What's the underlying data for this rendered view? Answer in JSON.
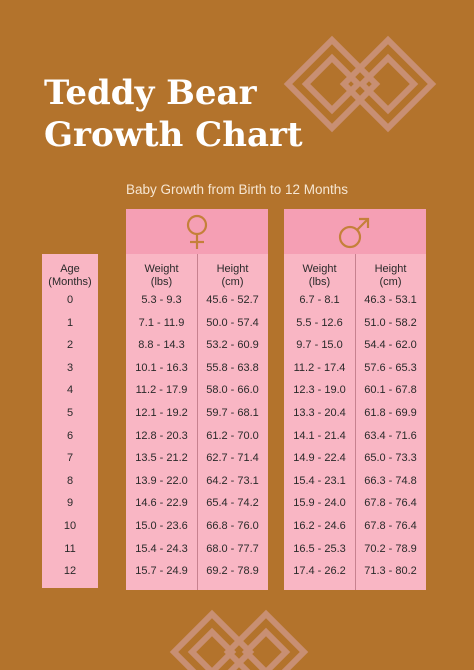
{
  "title": {
    "line1": "Teddy Bear",
    "line2": "Growth Chart"
  },
  "subtitle": "Baby Growth from Birth to 12 Months",
  "age_header": {
    "line1": "Age",
    "line2": "(Months)"
  },
  "girls": {
    "symbol": "female-symbol",
    "weight_header": {
      "line1": "Weight",
      "line2": "(lbs)"
    },
    "height_header": {
      "line1": "Height",
      "line2": "(cm)"
    }
  },
  "boys": {
    "symbol": "male-symbol",
    "weight_header": {
      "line1": "Weight",
      "line2": "(lbs)"
    },
    "height_header": {
      "line1": "Height",
      "line2": "(cm)"
    }
  },
  "rows": [
    {
      "age": "0",
      "gw": "5.3 - 9.3",
      "gh": "45.6 - 52.7",
      "bw": "6.7 - 8.1",
      "bh": "46.3 - 53.1"
    },
    {
      "age": "1",
      "gw": "7.1 - 11.9",
      "gh": "50.0 - 57.4",
      "bw": "5.5 - 12.6",
      "bh": "51.0 - 58.2"
    },
    {
      "age": "2",
      "gw": "8.8 - 14.3",
      "gh": "53.2 - 60.9",
      "bw": "9.7 - 15.0",
      "bh": "54.4 - 62.0"
    },
    {
      "age": "3",
      "gw": "10.1 - 16.3",
      "gh": "55.8 - 63.8",
      "bw": "11.2 - 17.4",
      "bh": "57.6 - 65.3"
    },
    {
      "age": "4",
      "gw": "11.2 - 17.9",
      "gh": "58.0 - 66.0",
      "bw": "12.3 - 19.0",
      "bh": "60.1 - 67.8"
    },
    {
      "age": "5",
      "gw": "12.1 - 19.2",
      "gh": "59.7 - 68.1",
      "bw": "13.3 - 20.4",
      "bh": "61.8 - 69.9"
    },
    {
      "age": "6",
      "gw": "12.8 - 20.3",
      "gh": "61.2 - 70.0",
      "bw": "14.1 - 21.4",
      "bh": "63.4 - 71.6"
    },
    {
      "age": "7",
      "gw": "13.5 - 21.2",
      "gh": "62.7 - 71.4",
      "bw": "14.9 - 22.4",
      "bh": "65.0 - 73.3"
    },
    {
      "age": "8",
      "gw": "13.9 - 22.0",
      "gh": "64.2 - 73.1",
      "bw": "15.4 - 23.1",
      "bh": "66.3 - 74.8"
    },
    {
      "age": "9",
      "gw": "14.6 - 22.9",
      "gh": "65.4 - 74.2",
      "bw": "15.9 - 24.0",
      "bh": "67.8 - 76.4"
    },
    {
      "age": "10",
      "gw": "15.0 - 23.6",
      "gh": "66.8 - 76.0",
      "bw": "16.2 - 24.6",
      "bh": "67.8 - 76.4"
    },
    {
      "age": "11",
      "gw": "15.4 - 24.3",
      "gh": "68.0 - 77.7",
      "bw": "16.5 - 25.3",
      "bh": "70.2 - 78.9"
    },
    {
      "age": "12",
      "gw": "15.7 - 24.9",
      "gh": "69.2 - 78.9",
      "bw": "17.4 - 26.2",
      "bh": "71.3 - 80.2"
    }
  ],
  "colors": {
    "background": "#b3732c",
    "table": "#f9b6c4",
    "header": "#f59fb4",
    "symbol": "#c5803a",
    "ornament": "#c88f73"
  }
}
